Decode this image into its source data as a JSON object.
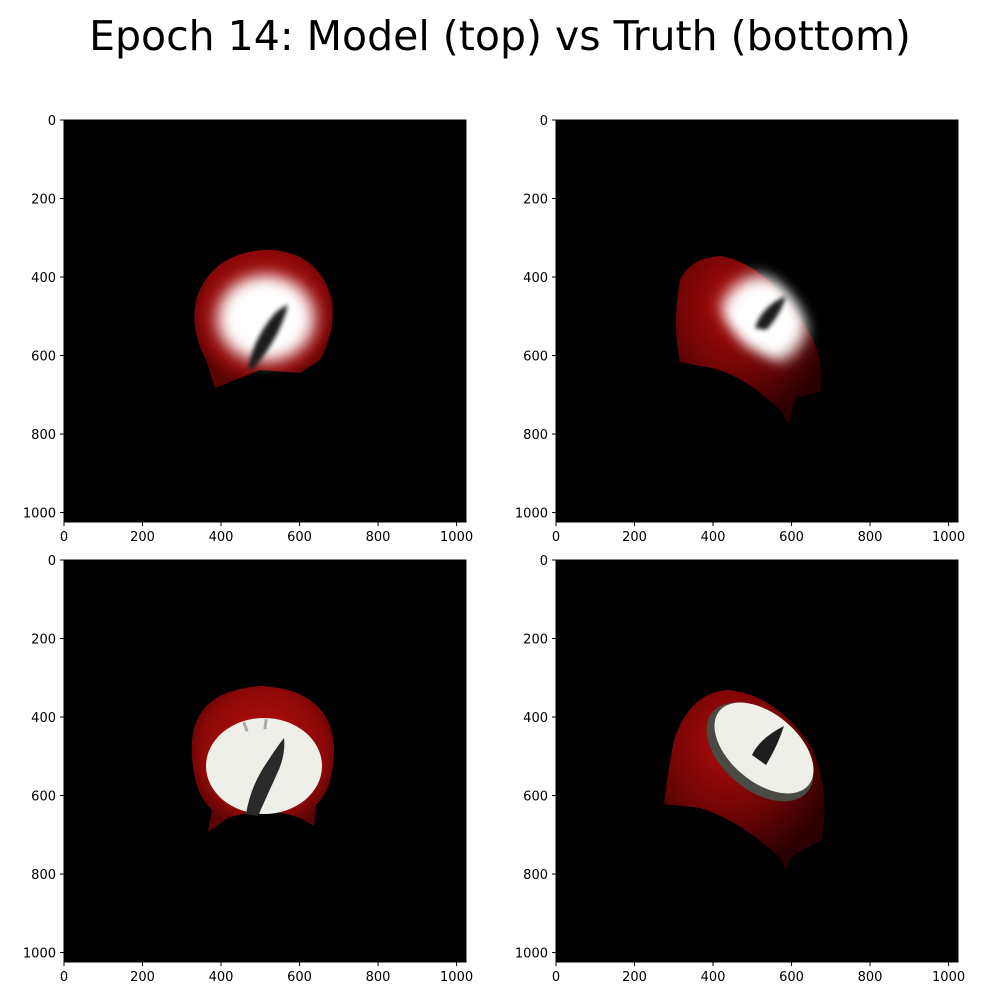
{
  "title": "Epoch 14: Model (top) vs Truth (bottom)",
  "chart_data": [
    {
      "type": "image",
      "panel": "top-left",
      "role": "model",
      "xlim": [
        0,
        1024
      ],
      "ylim": [
        1024,
        0
      ],
      "xticks": [
        0,
        200,
        400,
        600,
        800,
        1000
      ],
      "yticks": [
        0,
        200,
        400,
        600,
        800,
        1000
      ],
      "background": "#000000",
      "object": "red dial timer, blurry prediction",
      "object_colors": {
        "body": "#9e0a0a",
        "face": "#ffffff",
        "hand": "#222222"
      }
    },
    {
      "type": "image",
      "panel": "top-right",
      "role": "model",
      "xlim": [
        0,
        1024
      ],
      "ylim": [
        1024,
        0
      ],
      "xticks": [
        0,
        200,
        400,
        600,
        800,
        1000
      ],
      "yticks": [
        0,
        200,
        400,
        600,
        800,
        1000
      ],
      "background": "#000000",
      "object": "red dial timer tilted, blurry prediction",
      "object_colors": {
        "body": "#9e0a0a",
        "face": "#ffffff",
        "hand": "#222222"
      }
    },
    {
      "type": "image",
      "panel": "bottom-left",
      "role": "truth",
      "xlim": [
        0,
        1024
      ],
      "ylim": [
        1024,
        0
      ],
      "xticks": [
        0,
        200,
        400,
        600,
        800,
        1000
      ],
      "yticks": [
        0,
        200,
        400,
        600,
        800,
        1000
      ],
      "background": "#000000",
      "object": "red dial timer, ground truth",
      "object_colors": {
        "body": "#a00a0a",
        "face": "#f2f2ee",
        "hand": "#2a2a2a"
      }
    },
    {
      "type": "image",
      "panel": "bottom-right",
      "role": "truth",
      "xlim": [
        0,
        1024
      ],
      "ylim": [
        1024,
        0
      ],
      "xticks": [
        0,
        200,
        400,
        600,
        800,
        1000
      ],
      "yticks": [
        0,
        200,
        400,
        600,
        800,
        1000
      ],
      "background": "#000000",
      "object": "red dial timer tilted, ground truth",
      "object_colors": {
        "body": "#8e0808",
        "face": "#f2f2ee",
        "hand": "#1e1e1e"
      }
    }
  ]
}
